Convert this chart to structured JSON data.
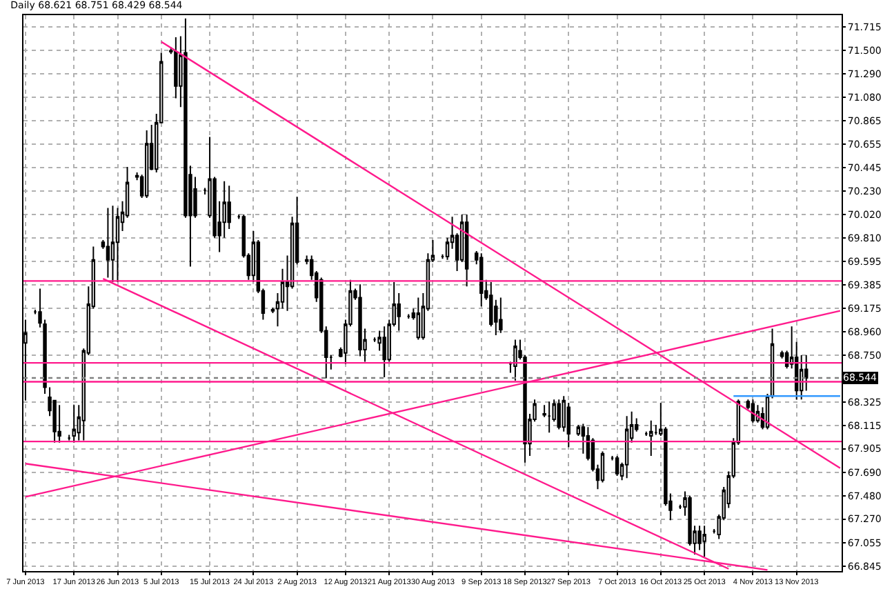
{
  "chart_data": {
    "type": "candlestick",
    "title": "Daily 68.621 68.751 68.429 68.544",
    "x": [
      "2013-06-07",
      "2013-06-09",
      "2013-06-10",
      "2013-06-11",
      "2013-06-12",
      "2013-06-13",
      "2013-06-14",
      "2013-06-16",
      "2013-06-17",
      "2013-06-18",
      "2013-06-19",
      "2013-06-20",
      "2013-06-21",
      "2013-06-23",
      "2013-06-24",
      "2013-06-25",
      "2013-06-26",
      "2013-06-27",
      "2013-06-28",
      "2013-06-30",
      "2013-07-01",
      "2013-07-02",
      "2013-07-03",
      "2013-07-04",
      "2013-07-05",
      "2013-07-07",
      "2013-07-08",
      "2013-07-09",
      "2013-07-10",
      "2013-07-11",
      "2013-07-12",
      "2013-07-14",
      "2013-07-15",
      "2013-07-16",
      "2013-07-17",
      "2013-07-18",
      "2013-07-19",
      "2013-07-21",
      "2013-07-22",
      "2013-07-23",
      "2013-07-24",
      "2013-07-25",
      "2013-07-26",
      "2013-07-28",
      "2013-07-29",
      "2013-07-30",
      "2013-07-31",
      "2013-08-01",
      "2013-08-02",
      "2013-08-04",
      "2013-08-05",
      "2013-08-06",
      "2013-08-07",
      "2013-08-08",
      "2013-08-09",
      "2013-08-11",
      "2013-08-12",
      "2013-08-13",
      "2013-08-14",
      "2013-08-15",
      "2013-08-16",
      "2013-08-18",
      "2013-08-19",
      "2013-08-20",
      "2013-08-21",
      "2013-08-22",
      "2013-08-23",
      "2013-08-25",
      "2013-08-26",
      "2013-08-27",
      "2013-08-28",
      "2013-08-29",
      "2013-08-30",
      "2013-09-01",
      "2013-09-02",
      "2013-09-03",
      "2013-09-04",
      "2013-09-05",
      "2013-09-06",
      "2013-09-08",
      "2013-09-09",
      "2013-09-10",
      "2013-09-11",
      "2013-09-12",
      "2013-09-13",
      "2013-09-15",
      "2013-09-16",
      "2013-09-17",
      "2013-09-18",
      "2013-09-19",
      "2013-09-20",
      "2013-09-22",
      "2013-09-23",
      "2013-09-24",
      "2013-09-25",
      "2013-09-26",
      "2013-09-27",
      "2013-09-29",
      "2013-09-30",
      "2013-10-01",
      "2013-10-02",
      "2013-10-03",
      "2013-10-04",
      "2013-10-06",
      "2013-10-07",
      "2013-10-08",
      "2013-10-09",
      "2013-10-10",
      "2013-10-11",
      "2013-10-13",
      "2013-10-14",
      "2013-10-15",
      "2013-10-16",
      "2013-10-17",
      "2013-10-18",
      "2013-10-20",
      "2013-10-21",
      "2013-10-22",
      "2013-10-23",
      "2013-10-24",
      "2013-10-25",
      "2013-10-27",
      "2013-10-28",
      "2013-10-29",
      "2013-10-30",
      "2013-10-31",
      "2013-11-01",
      "2013-11-03",
      "2013-11-04",
      "2013-11-05",
      "2013-11-06",
      "2013-11-07",
      "2013-11-08",
      "2013-11-10",
      "2013-11-11",
      "2013-11-12",
      "2013-11-13",
      "2013-11-14",
      "2013-11-15"
    ],
    "ohlc": [
      [
        68.86,
        69.07,
        68.34,
        68.95
      ],
      [
        69.14,
        69.16,
        69.12,
        69.14
      ],
      [
        69.14,
        69.35,
        69.0,
        69.04
      ],
      [
        69.03,
        69.07,
        68.4,
        68.46
      ],
      [
        68.37,
        68.46,
        68.2,
        68.25
      ],
      [
        68.34,
        68.34,
        67.96,
        68.06
      ],
      [
        68.06,
        68.3,
        67.96,
        68.02
      ],
      [
        68.0,
        68.03,
        67.98,
        68.0
      ],
      [
        68.02,
        68.3,
        67.96,
        68.08
      ],
      [
        68.05,
        68.3,
        67.98,
        68.19
      ],
      [
        68.16,
        68.81,
        67.98,
        68.79
      ],
      [
        68.77,
        69.37,
        68.75,
        69.21
      ],
      [
        69.19,
        69.73,
        69.17,
        69.61
      ],
      [
        69.77,
        69.79,
        69.71,
        69.73
      ],
      [
        69.73,
        70.08,
        69.45,
        69.61
      ],
      [
        69.61,
        70.1,
        69.41,
        69.77
      ],
      [
        69.77,
        70.08,
        69.41,
        70.0
      ],
      [
        69.95,
        70.14,
        69.87,
        70.04
      ],
      [
        70.01,
        70.45,
        69.99,
        70.31
      ],
      [
        70.37,
        70.4,
        70.33,
        70.36
      ],
      [
        70.36,
        70.38,
        70.17,
        70.19
      ],
      [
        70.19,
        70.78,
        70.17,
        70.66
      ],
      [
        70.66,
        70.83,
        70.42,
        70.43
      ],
      [
        70.43,
        70.93,
        70.4,
        70.85
      ],
      [
        70.85,
        71.48,
        70.85,
        71.4
      ],
      [
        71.5,
        71.53,
        71.47,
        71.49
      ],
      [
        71.49,
        71.62,
        71.07,
        71.18
      ],
      [
        71.18,
        71.63,
        70.99,
        71.46
      ],
      [
        71.48,
        71.79,
        69.99,
        70.01
      ],
      [
        70.38,
        70.46,
        69.55,
        70.01
      ],
      [
        70.25,
        70.36,
        69.99,
        70.01
      ],
      [
        70.24,
        70.26,
        70.2,
        70.24
      ],
      [
        70.01,
        70.72,
        69.99,
        70.34
      ],
      [
        70.34,
        70.36,
        69.81,
        69.83
      ],
      [
        69.95,
        70.14,
        69.68,
        69.83
      ],
      [
        69.95,
        70.32,
        69.81,
        70.13
      ],
      [
        70.13,
        70.28,
        69.89,
        69.95
      ],
      [
        70.0,
        70.02,
        69.98,
        70.0
      ],
      [
        70.0,
        70.02,
        69.63,
        69.65
      ],
      [
        69.65,
        69.67,
        69.43,
        69.47
      ],
      [
        69.47,
        69.87,
        69.41,
        69.77
      ],
      [
        69.77,
        69.79,
        69.31,
        69.33
      ],
      [
        69.33,
        69.35,
        69.07,
        69.13
      ],
      [
        69.15,
        69.18,
        69.13,
        69.16
      ],
      [
        69.17,
        69.31,
        69.01,
        69.23
      ],
      [
        69.23,
        69.53,
        69.17,
        69.41
      ],
      [
        69.41,
        69.65,
        69.15,
        69.37
      ],
      [
        69.37,
        70.0,
        69.35,
        69.94
      ],
      [
        69.94,
        70.18,
        69.57,
        69.59
      ],
      [
        69.6,
        69.65,
        69.57,
        69.61
      ],
      [
        69.61,
        69.65,
        69.43,
        69.47
      ],
      [
        69.49,
        69.51,
        69.23,
        69.27
      ],
      [
        69.43,
        69.45,
        68.95,
        68.97
      ],
      [
        68.97,
        69.01,
        68.54,
        68.73
      ],
      [
        68.73,
        68.75,
        68.62,
        68.73
      ],
      [
        68.8,
        68.82,
        68.73,
        68.74
      ],
      [
        68.77,
        69.07,
        68.67,
        69.03
      ],
      [
        69.03,
        69.43,
        69.01,
        69.33
      ],
      [
        69.33,
        69.35,
        69.25,
        69.27
      ],
      [
        69.27,
        69.39,
        68.74,
        68.8
      ],
      [
        68.8,
        68.99,
        68.69,
        68.89
      ],
      [
        68.89,
        68.91,
        68.87,
        68.89
      ],
      [
        68.86,
        68.97,
        68.79,
        68.91
      ],
      [
        68.91,
        69.01,
        68.55,
        68.71
      ],
      [
        68.71,
        69.07,
        68.69,
        69.03
      ],
      [
        69.03,
        69.41,
        69.01,
        69.21
      ],
      [
        69.21,
        69.31,
        68.97,
        69.1
      ],
      [
        69.1,
        69.12,
        69.08,
        69.1
      ],
      [
        69.13,
        69.17,
        69.07,
        69.09
      ],
      [
        68.91,
        69.27,
        68.89,
        69.13
      ],
      [
        68.91,
        69.31,
        68.89,
        69.19
      ],
      [
        69.17,
        69.67,
        69.15,
        69.61
      ],
      [
        69.61,
        69.79,
        69.59,
        69.65
      ],
      [
        69.64,
        69.66,
        69.62,
        69.64
      ],
      [
        69.64,
        69.81,
        69.61,
        69.77
      ],
      [
        69.77,
        70.0,
        69.71,
        69.83
      ],
      [
        69.83,
        69.85,
        69.51,
        69.61
      ],
      [
        69.61,
        70.02,
        69.59,
        69.95
      ],
      [
        69.95,
        70.02,
        69.37,
        69.53
      ],
      [
        69.67,
        69.69,
        69.57,
        69.61
      ],
      [
        69.63,
        69.67,
        69.19,
        69.31
      ],
      [
        69.33,
        69.43,
        69.25,
        69.27
      ],
      [
        69.29,
        69.41,
        69.01,
        69.03
      ],
      [
        69.19,
        69.25,
        68.93,
        69.05
      ],
      [
        69.07,
        69.27,
        68.95,
        68.98
      ],
      [
        68.67,
        68.69,
        68.59,
        68.67
      ],
      [
        68.65,
        68.89,
        68.52,
        68.83
      ],
      [
        68.79,
        68.89,
        68.71,
        68.73
      ],
      [
        68.73,
        68.75,
        67.78,
        67.95
      ],
      [
        67.95,
        68.22,
        67.84,
        68.17
      ],
      [
        68.17,
        68.35,
        68.15,
        68.31
      ],
      [
        68.21,
        68.3,
        68.19,
        68.22
      ],
      [
        68.2,
        68.33,
        68.05,
        68.2
      ],
      [
        68.17,
        68.35,
        68.15,
        68.31
      ],
      [
        68.31,
        68.35,
        68.08,
        68.1
      ],
      [
        68.1,
        68.38,
        68.06,
        68.34
      ],
      [
        68.28,
        68.32,
        67.92,
        68.04
      ],
      [
        68.04,
        68.12,
        68.02,
        68.1
      ],
      [
        68.1,
        68.13,
        67.86,
        68.02
      ],
      [
        68.02,
        68.1,
        67.8,
        67.82
      ],
      [
        67.98,
        68.0,
        67.7,
        67.72
      ],
      [
        67.72,
        67.76,
        67.54,
        67.62
      ],
      [
        67.62,
        67.88,
        67.6,
        67.86
      ],
      [
        67.82,
        67.84,
        67.8,
        67.82
      ],
      [
        67.82,
        67.84,
        67.66,
        67.68
      ],
      [
        67.66,
        67.78,
        67.62,
        67.76
      ],
      [
        67.76,
        68.2,
        67.64,
        68.08
      ],
      [
        68.0,
        68.24,
        67.96,
        68.12
      ],
      [
        68.12,
        68.18,
        68.06,
        68.08
      ],
      [
        68.04,
        68.06,
        68.02,
        68.04
      ],
      [
        68.02,
        68.16,
        67.84,
        68.06
      ],
      [
        68.05,
        68.12,
        68.03,
        68.05
      ],
      [
        68.04,
        68.32,
        68.02,
        68.08
      ],
      [
        68.08,
        68.1,
        67.39,
        67.41
      ],
      [
        67.43,
        67.5,
        67.26,
        67.35
      ],
      [
        67.38,
        67.4,
        67.36,
        67.38
      ],
      [
        67.38,
        67.52,
        67.3,
        67.46
      ],
      [
        67.46,
        67.48,
        67.03,
        67.05
      ],
      [
        67.05,
        67.21,
        66.95,
        67.16
      ],
      [
        67.16,
        67.21,
        66.99,
        67.05
      ],
      [
        67.07,
        67.21,
        66.93,
        67.13
      ],
      [
        67.16,
        67.18,
        67.14,
        67.16
      ],
      [
        67.13,
        67.31,
        67.09,
        67.29
      ],
      [
        67.28,
        67.56,
        67.26,
        67.53
      ],
      [
        67.41,
        67.7,
        67.37,
        67.66
      ],
      [
        67.66,
        68.0,
        67.64,
        67.96
      ],
      [
        67.96,
        68.35,
        67.94,
        68.33
      ],
      [
        68.33,
        68.35,
        68.26,
        68.28
      ],
      [
        68.31,
        68.35,
        68.14,
        68.16
      ],
      [
        68.16,
        68.3,
        68.14,
        68.24
      ],
      [
        68.22,
        68.28,
        68.08,
        68.1
      ],
      [
        68.1,
        68.4,
        68.08,
        68.38
      ],
      [
        68.38,
        68.99,
        68.36,
        68.85
      ],
      [
        68.77,
        68.79,
        68.72,
        68.74
      ],
      [
        68.77,
        68.79,
        68.63,
        68.65
      ],
      [
        68.67,
        69.01,
        68.63,
        68.73
      ],
      [
        68.73,
        68.87,
        68.35,
        68.43
      ],
      [
        68.43,
        68.75,
        68.35,
        68.62
      ],
      [
        68.621,
        68.751,
        68.429,
        68.544
      ]
    ],
    "series": [
      {
        "type": "line",
        "color": "#ff1a8c",
        "x": [
          "2013-07-05",
          "2013-11-22"
        ],
        "values": [
          71.58,
          67.73
        ]
      },
      {
        "type": "line",
        "color": "#ff1a8c",
        "x": [
          "2013-06-23",
          "2013-10-30"
        ],
        "values": [
          69.44,
          66.82
        ]
      },
      {
        "type": "line",
        "color": "#ff1a8c",
        "x": [
          "2013-06-07",
          "2013-11-07"
        ],
        "values": [
          67.77,
          66.81
        ]
      },
      {
        "type": "line",
        "color": "#ff1a8c",
        "x": [
          "2013-06-07",
          "2013-11-22"
        ],
        "values": [
          67.47,
          69.15
        ]
      },
      {
        "type": "line",
        "color": "#3399ff",
        "x": [
          "2013-10-31",
          "2013-11-22"
        ],
        "values": [
          68.38,
          68.38
        ]
      }
    ],
    "ref_lines": [
      {
        "axis": "y",
        "value": 69.42,
        "color": "#ff1a8c"
      },
      {
        "axis": "y",
        "value": 68.68,
        "color": "#ff1a8c"
      },
      {
        "axis": "y",
        "value": 68.51,
        "color": "#ff1a8c"
      },
      {
        "axis": "y",
        "value": 67.97,
        "color": "#ff1a8c"
      },
      {
        "axis": "y",
        "value": 68.544,
        "label": "68.544",
        "color": "#808080",
        "line_style": "dotted"
      }
    ],
    "xlim": [
      "2013-06-06T14:00",
      "2013-11-22T07:00"
    ],
    "xticks": [
      {
        "value": "2013-06-07",
        "label": "7 Jun 2013"
      },
      {
        "value": "2013-06-17",
        "label": "17 Jun 2013"
      },
      {
        "value": "2013-06-26",
        "label": "26 Jun 2013"
      },
      {
        "value": "2013-07-05",
        "label": "5 Jul 2013"
      },
      {
        "value": "2013-07-15",
        "label": "15 Jul 2013"
      },
      {
        "value": "2013-07-24",
        "label": "24 Jul 2013"
      },
      {
        "value": "2013-08-02",
        "label": "2 Aug 2013"
      },
      {
        "value": "2013-08-12",
        "label": "12 Aug 2013"
      },
      {
        "value": "2013-08-21",
        "label": "21 Aug 2013"
      },
      {
        "value": "2013-08-30",
        "label": "30 Aug 2013"
      },
      {
        "value": "2013-09-09",
        "label": "9 Sep 2013"
      },
      {
        "value": "2013-09-18",
        "label": "18 Sep 2013"
      },
      {
        "value": "2013-09-27",
        "label": "27 Sep 2013"
      },
      {
        "value": "2013-10-07",
        "label": "7 Oct 2013"
      },
      {
        "value": "2013-10-16",
        "label": "16 Oct 2013"
      },
      {
        "value": "2013-10-25",
        "label": "25 Oct 2013"
      },
      {
        "value": "2013-11-04",
        "label": "4 Nov 2013"
      },
      {
        "value": "2013-11-13",
        "label": "13 Nov 2013"
      }
    ],
    "ylim": [
      66.8,
      71.82
    ],
    "yticks": [
      {
        "value": 71.715,
        "label": "71.715"
      },
      {
        "value": 71.5,
        "label": "71.500"
      },
      {
        "value": 71.29,
        "label": "71.290"
      },
      {
        "value": 71.08,
        "label": "71.080"
      },
      {
        "value": 70.865,
        "label": "70.865"
      },
      {
        "value": 70.655,
        "label": "70.655"
      },
      {
        "value": 70.445,
        "label": "70.445"
      },
      {
        "value": 70.23,
        "label": "70.230"
      },
      {
        "value": 70.02,
        "label": "70.020"
      },
      {
        "value": 69.81,
        "label": "69.810"
      },
      {
        "value": 69.595,
        "label": "69.595"
      },
      {
        "value": 69.385,
        "label": "69.385"
      },
      {
        "value": 69.175,
        "label": "69.175"
      },
      {
        "value": 68.96,
        "label": "68.960"
      },
      {
        "value": 68.75,
        "label": "68.750"
      },
      {
        "value": 68.325,
        "label": "68.325"
      },
      {
        "value": 68.115,
        "label": "68.115"
      },
      {
        "value": 67.905,
        "label": "67.905"
      },
      {
        "value": 67.69,
        "label": "67.690"
      },
      {
        "value": 67.48,
        "label": "67.480"
      },
      {
        "value": 67.27,
        "label": "67.270"
      },
      {
        "value": 67.055,
        "label": "67.055"
      },
      {
        "value": 66.845,
        "label": "66.845"
      }
    ],
    "grid": true
  }
}
